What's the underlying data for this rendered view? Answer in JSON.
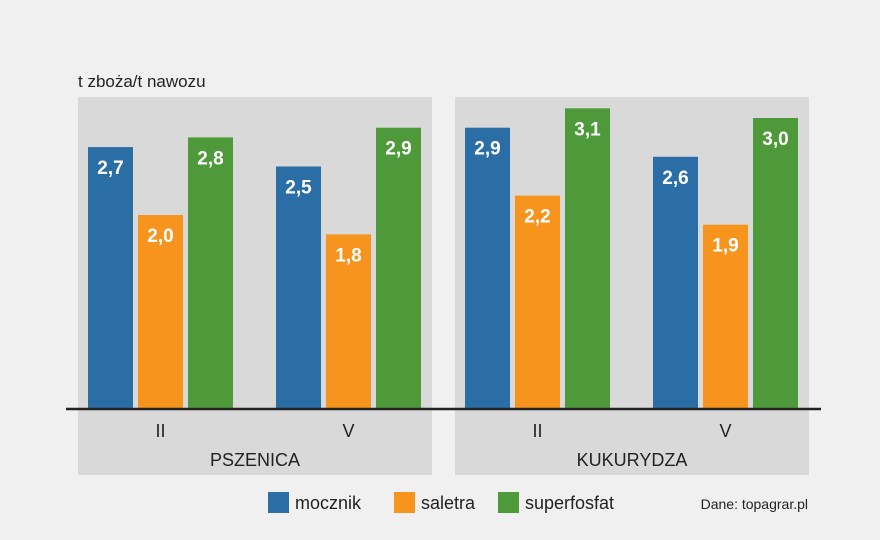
{
  "chart_data": {
    "type": "bar",
    "ylabel": "t zboża/t nawozu",
    "ylim": [
      0,
      3.2
    ],
    "source": "Dane: topagrar.pl",
    "groups": [
      {
        "name": "PSZENICA",
        "subgroups": [
          {
            "label": "II",
            "values": [
              2.7,
              2.0,
              2.8
            ],
            "labels": [
              "2,7",
              "2,0",
              "2,8"
            ]
          },
          {
            "label": "V",
            "values": [
              2.5,
              1.8,
              2.9
            ],
            "labels": [
              "2,5",
              "1,8",
              "2,9"
            ]
          }
        ]
      },
      {
        "name": "KUKURYDZA",
        "subgroups": [
          {
            "label": "II",
            "values": [
              2.9,
              2.2,
              3.1
            ],
            "labels": [
              "2,9",
              "2,2",
              "3,1"
            ]
          },
          {
            "label": "V",
            "values": [
              2.6,
              1.9,
              3.0
            ],
            "labels": [
              "2,6",
              "1,9",
              "3,0"
            ]
          }
        ]
      }
    ],
    "series": [
      {
        "name": "mocznik",
        "color": "#2b6ea6"
      },
      {
        "name": "saletra",
        "color": "#f7941d"
      },
      {
        "name": "superfosfat",
        "color": "#4e9a3a"
      }
    ],
    "panel_color": "#d9d9d9",
    "grid": false,
    "legend": "bottom"
  }
}
